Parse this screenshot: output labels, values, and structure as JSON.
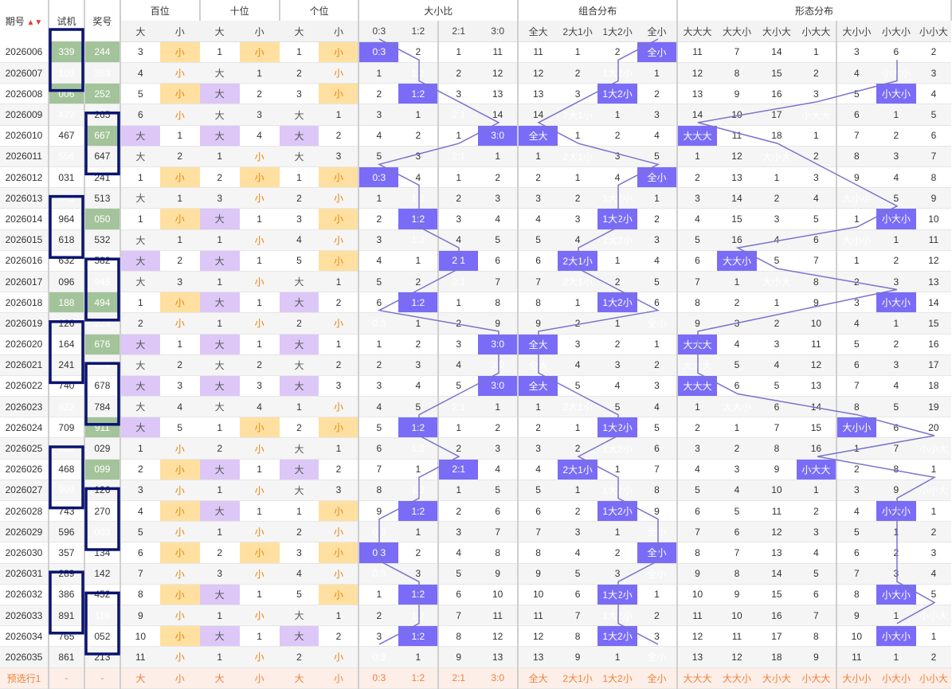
{
  "headers": {
    "period": "期号",
    "test": "试机",
    "draw": "奖号",
    "groups": [
      "百位",
      "十位",
      "个位",
      "大小比",
      "组合分布",
      "形态分布"
    ],
    "sub": [
      "大",
      "小",
      "大",
      "小",
      "大",
      "小",
      "0:3",
      "1:2",
      "2:1",
      "3:0",
      "全大",
      "2大1小",
      "1大2小",
      "全小",
      "大大大",
      "大大小",
      "大小大",
      "小大大",
      "大小小",
      "小大小",
      "小小大"
    ]
  },
  "rows": [
    {
      "period": "2026006",
      "test": "339",
      "draw": "244",
      "c": [
        "3",
        "小",
        "1",
        "小",
        "1",
        "小",
        "0:3",
        "2",
        "1",
        "11",
        "11",
        "1",
        "2",
        "全小",
        "11",
        "7",
        "14",
        "1",
        "3",
        "6",
        "2"
      ]
    },
    {
      "period": "2026007",
      "test": "109",
      "draw": "353",
      "c": [
        "4",
        "小",
        "大",
        "1",
        "2",
        "小",
        "1",
        "1:2",
        "2",
        "12",
        "12",
        "2",
        "1大2小",
        "1",
        "12",
        "8",
        "15",
        "2",
        "4",
        "小大小",
        "3"
      ]
    },
    {
      "period": "2026008",
      "test": "006",
      "draw": "252",
      "c": [
        "5",
        "小",
        "大",
        "2",
        "3",
        "小",
        "2",
        "1:2",
        "3",
        "13",
        "13",
        "3",
        "1大2小",
        "2",
        "13",
        "9",
        "16",
        "3",
        "5",
        "小大小",
        "4"
      ]
    },
    {
      "period": "2026009",
      "test": "422",
      "draw": "265",
      "c": [
        "6",
        "小",
        "大",
        "3",
        "大",
        "1",
        "3",
        "1",
        "2:1",
        "14",
        "14",
        "2大1小",
        "1",
        "3",
        "14",
        "10",
        "17",
        "小大大",
        "6",
        "1",
        "5"
      ]
    },
    {
      "period": "2026010",
      "test": "467",
      "draw": "667",
      "c": [
        "大",
        "1",
        "大",
        "4",
        "大",
        "2",
        "4",
        "2",
        "1",
        "3:0",
        "全大",
        "1",
        "2",
        "4",
        "大大大",
        "11",
        "18",
        "1",
        "7",
        "2",
        "6"
      ]
    },
    {
      "period": "2026011",
      "test": "556",
      "draw": "647",
      "c": [
        "大",
        "2",
        "1",
        "小",
        "大",
        "3",
        "5",
        "3",
        "2:1",
        "1",
        "1",
        "2大1小",
        "3",
        "5",
        "1",
        "12",
        "大小大",
        "2",
        "8",
        "3",
        "7"
      ]
    },
    {
      "period": "2026012",
      "test": "031",
      "draw": "241",
      "c": [
        "1",
        "小",
        "2",
        "小",
        "1",
        "小",
        "0:3",
        "4",
        "1",
        "2",
        "2",
        "1",
        "4",
        "全小",
        "2",
        "13",
        "1",
        "3",
        "9",
        "4",
        "8"
      ]
    },
    {
      "period": "2026013",
      "test": "441",
      "draw": "513",
      "c": [
        "大",
        "1",
        "3",
        "小",
        "2",
        "小",
        "1",
        "1:2",
        "2",
        "3",
        "3",
        "2",
        "1大2小",
        "1",
        "3",
        "14",
        "2",
        "4",
        "大小小",
        "5",
        "9"
      ]
    },
    {
      "period": "2026014",
      "test": "964",
      "draw": "050",
      "c": [
        "1",
        "小",
        "大",
        "1",
        "3",
        "小",
        "2",
        "1:2",
        "3",
        "4",
        "4",
        "3",
        "1大2小",
        "2",
        "4",
        "15",
        "3",
        "5",
        "1",
        "小大小",
        "10"
      ]
    },
    {
      "period": "2026015",
      "test": "618",
      "draw": "532",
      "c": [
        "大",
        "1",
        "1",
        "小",
        "4",
        "小",
        "3",
        "1:2",
        "4",
        "5",
        "5",
        "4",
        "1大2小",
        "3",
        "5",
        "16",
        "4",
        "6",
        "大小小",
        "1",
        "11"
      ]
    },
    {
      "period": "2026016",
      "test": "632",
      "draw": "582",
      "c": [
        "大",
        "2",
        "大",
        "1",
        "5",
        "小",
        "4",
        "1",
        "2:1",
        "6",
        "6",
        "2大1小",
        "1",
        "4",
        "6",
        "大大小",
        "5",
        "7",
        "1",
        "2",
        "12"
      ]
    },
    {
      "period": "2026017",
      "test": "096",
      "draw": "945",
      "c": [
        "大",
        "3",
        "1",
        "小",
        "大",
        "1",
        "5",
        "2",
        "2:1",
        "7",
        "7",
        "2大1小",
        "2",
        "5",
        "7",
        "1",
        "大小大",
        "8",
        "2",
        "3",
        "13"
      ]
    },
    {
      "period": "2026018",
      "test": "188",
      "draw": "494",
      "c": [
        "1",
        "小",
        "大",
        "1",
        "大",
        "2",
        "6",
        "1:2",
        "1",
        "8",
        "8",
        "1",
        "1大2小",
        "6",
        "8",
        "2",
        "1",
        "9",
        "3",
        "小大小",
        "14"
      ]
    },
    {
      "period": "2026019",
      "test": "126",
      "draw": "223",
      "c": [
        "2",
        "小",
        "1",
        "小",
        "2",
        "小",
        "0:3",
        "1",
        "2",
        "9",
        "9",
        "2",
        "1",
        "全小",
        "9",
        "3",
        "2",
        "10",
        "4",
        "1",
        "15"
      ]
    },
    {
      "period": "2026020",
      "test": "164",
      "draw": "676",
      "c": [
        "大",
        "1",
        "大",
        "1",
        "大",
        "1",
        "1",
        "2",
        "3",
        "3:0",
        "全大",
        "3",
        "2",
        "1",
        "大大大",
        "4",
        "3",
        "11",
        "5",
        "2",
        "16"
      ]
    },
    {
      "period": "2026021",
      "test": "241",
      "draw": "559",
      "c": [
        "大",
        "2",
        "大",
        "2",
        "大",
        "2",
        "2",
        "3",
        "4",
        "3:0",
        "全大",
        "4",
        "3",
        "2",
        "大大大",
        "5",
        "4",
        "12",
        "6",
        "3",
        "17"
      ]
    },
    {
      "period": "2026022",
      "test": "740",
      "draw": "678",
      "c": [
        "大",
        "3",
        "大",
        "3",
        "大",
        "3",
        "3",
        "4",
        "5",
        "3:0",
        "全大",
        "5",
        "4",
        "3",
        "大大大",
        "6",
        "5",
        "13",
        "7",
        "4",
        "18"
      ]
    },
    {
      "period": "2026023",
      "test": "922",
      "draw": "784",
      "c": [
        "大",
        "4",
        "大",
        "4",
        "1",
        "小",
        "4",
        "5",
        "2:1",
        "1",
        "1",
        "2大1小",
        "5",
        "4",
        "1",
        "大大小",
        "6",
        "14",
        "8",
        "5",
        "19"
      ]
    },
    {
      "period": "2026024",
      "test": "709",
      "draw": "911",
      "c": [
        "大",
        "5",
        "1",
        "小",
        "2",
        "小",
        "5",
        "1:2",
        "1",
        "2",
        "2",
        "1",
        "1大2小",
        "5",
        "2",
        "1",
        "7",
        "15",
        "大小小",
        "6",
        "20"
      ]
    },
    {
      "period": "2026025",
      "test": "888",
      "draw": "029",
      "c": [
        "1",
        "小",
        "2",
        "小",
        "大",
        "1",
        "6",
        "1:2",
        "2",
        "3",
        "3",
        "2",
        "1大2小",
        "6",
        "3",
        "2",
        "8",
        "16",
        "1",
        "7",
        "小小大"
      ]
    },
    {
      "period": "2026026",
      "test": "468",
      "draw": "099",
      "c": [
        "2",
        "小",
        "大",
        "1",
        "大",
        "2",
        "7",
        "1",
        "2:1",
        "4",
        "4",
        "2大1小",
        "1",
        "7",
        "4",
        "3",
        "9",
        "小大大",
        "2",
        "8",
        "1"
      ]
    },
    {
      "period": "2026027",
      "test": "909",
      "draw": "126",
      "c": [
        "3",
        "小",
        "1",
        "小",
        "大",
        "3",
        "8",
        "1:2",
        "1",
        "5",
        "5",
        "1",
        "1大2小",
        "8",
        "5",
        "4",
        "10",
        "1",
        "3",
        "9",
        "小小大"
      ]
    },
    {
      "period": "2026028",
      "test": "743",
      "draw": "270",
      "c": [
        "4",
        "小",
        "大",
        "1",
        "1",
        "小",
        "9",
        "1:2",
        "2",
        "6",
        "6",
        "2",
        "1大2小",
        "9",
        "6",
        "5",
        "11",
        "2",
        "4",
        "小大小",
        "1"
      ]
    },
    {
      "period": "2026029",
      "test": "596",
      "draw": "003",
      "c": [
        "5",
        "小",
        "1",
        "小",
        "2",
        "小",
        "0:3",
        "1",
        "3",
        "7",
        "7",
        "3",
        "1",
        "全小",
        "7",
        "6",
        "12",
        "3",
        "5",
        "1",
        "2"
      ]
    },
    {
      "period": "2026030",
      "test": "357",
      "draw": "134",
      "c": [
        "6",
        "小",
        "2",
        "小",
        "3",
        "小",
        "0:3",
        "2",
        "4",
        "8",
        "8",
        "4",
        "2",
        "全小",
        "8",
        "7",
        "13",
        "4",
        "6",
        "2",
        "3"
      ]
    },
    {
      "period": "2026031",
      "test": "289",
      "draw": "142",
      "c": [
        "7",
        "小",
        "3",
        "小",
        "4",
        "小",
        "0:3",
        "3",
        "5",
        "9",
        "9",
        "5",
        "3",
        "全小",
        "9",
        "8",
        "14",
        "5",
        "7",
        "3",
        "4"
      ]
    },
    {
      "period": "2026032",
      "test": "386",
      "draw": "452",
      "c": [
        "8",
        "小",
        "大",
        "1",
        "5",
        "小",
        "1",
        "1:2",
        "6",
        "10",
        "10",
        "6",
        "1大2小",
        "1",
        "10",
        "9",
        "15",
        "6",
        "8",
        "小大小",
        "5"
      ]
    },
    {
      "period": "2026033",
      "test": "891",
      "draw": "119",
      "c": [
        "9",
        "小",
        "1",
        "小",
        "大",
        "1",
        "2",
        "1:2",
        "7",
        "11",
        "11",
        "7",
        "1大2小",
        "2",
        "11",
        "10",
        "16",
        "7",
        "9",
        "1",
        "小小大"
      ]
    },
    {
      "period": "2026034",
      "test": "765",
      "draw": "052",
      "c": [
        "10",
        "小",
        "大",
        "1",
        "大",
        "2",
        "3",
        "1:2",
        "8",
        "12",
        "12",
        "8",
        "1大2小",
        "3",
        "12",
        "11",
        "17",
        "8",
        "10",
        "小大小",
        "1"
      ]
    },
    {
      "period": "2026035",
      "test": "861",
      "draw": "213",
      "c": [
        "11",
        "小",
        "1",
        "小",
        "2",
        "小",
        "0:3",
        "1",
        "9",
        "13",
        "13",
        "9",
        "1",
        "全小",
        "13",
        "12",
        "18",
        "9",
        "11",
        "1",
        "2"
      ]
    }
  ],
  "highlights": {
    "test_green": [
      "339",
      "109",
      "006",
      "422",
      "556",
      "441",
      "188",
      "922",
      "909"
    ],
    "test_dark": [
      "888"
    ],
    "draw_green": [
      "244",
      "353",
      "252",
      "667",
      "050",
      "945",
      "494",
      "223",
      "676",
      "559",
      "911",
      "099",
      "003",
      "119"
    ]
  },
  "preselect": {
    "label": "预选行1",
    "dash1": "-",
    "dash2": "-",
    "c": [
      "大",
      "小",
      "大",
      "小",
      "大",
      "小",
      "0:3",
      "1:2",
      "2:1",
      "3:0",
      "全大",
      "2大1小",
      "1大2小",
      "全小",
      "大大大",
      "大大小",
      "大小大",
      "小大大",
      "大小小",
      "小大小",
      "小小大"
    ]
  },
  "colors": {
    "hit": "#7a6cf7",
    "yellow": "#ffe0a1",
    "purple": "#dcc7f7",
    "green": "#a3c39a",
    "box": "#0a1370",
    "line": "#7a74cc"
  }
}
